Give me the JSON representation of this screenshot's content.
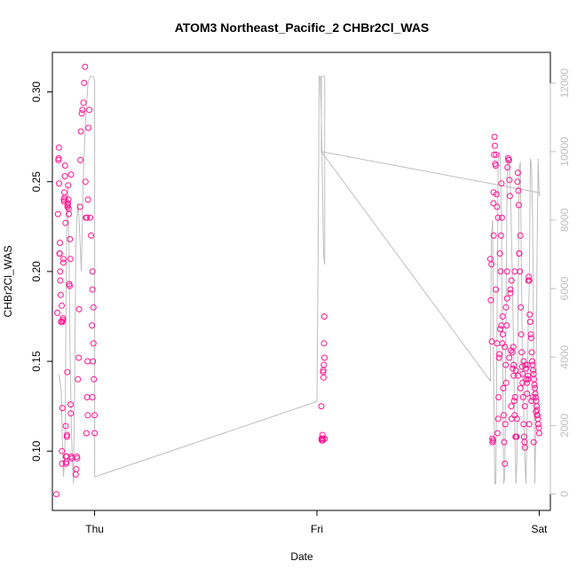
{
  "chart_data": {
    "type": "scatter",
    "title": "ATOM3 Northeast_Pacific_2 CHBr2Cl_WAS",
    "xlabel": "Date",
    "ylabel": "CHBr2Cl_WAS",
    "x_ticks": [
      "Thu",
      "Fri",
      "Sat"
    ],
    "x_tick_values": [
      0,
      1,
      2
    ],
    "xlim": [
      -0.19,
      2.05
    ],
    "ylim": [
      0.067,
      0.322
    ],
    "y_ticks": [
      0.1,
      0.15,
      0.2,
      0.25,
      0.3
    ],
    "y_right_lim": [
      -480,
      12900
    ],
    "y_right_ticks": [
      0,
      2000,
      4000,
      6000,
      8000,
      10000,
      12000
    ],
    "grid": false,
    "colors": {
      "points": "#ff1493",
      "line": "#bebebe",
      "axis": "#000000",
      "right_axis": "#bebebe"
    },
    "series": [
      {
        "type": "scatter",
        "axis": "left",
        "x": [
          -0.172,
          -0.168,
          -0.165,
          -0.163,
          -0.162,
          -0.161,
          -0.16,
          -0.158,
          -0.157,
          -0.156,
          -0.155,
          -0.154,
          -0.153,
          -0.151,
          -0.15,
          -0.148,
          -0.147,
          -0.146,
          -0.145,
          -0.144,
          -0.143,
          -0.142,
          -0.141,
          -0.14,
          -0.138,
          -0.137,
          -0.136,
          -0.135,
          -0.134,
          -0.133,
          -0.131,
          -0.13,
          -0.129,
          -0.128,
          -0.127,
          -0.126,
          -0.125,
          -0.124,
          -0.123,
          -0.122,
          -0.121,
          -0.12,
          -0.119,
          -0.118,
          -0.117,
          -0.116,
          -0.114,
          -0.112,
          -0.111,
          -0.109,
          -0.108,
          -0.107,
          -0.106,
          -0.105,
          -0.103,
          -0.102,
          -0.085,
          -0.082,
          -0.08,
          -0.078,
          -0.075,
          -0.072,
          -0.07,
          -0.066,
          -0.064,
          -0.062,
          -0.058,
          -0.055,
          -0.05,
          -0.047,
          -0.043,
          -0.041,
          -0.039,
          -0.037,
          -0.034,
          -0.031,
          -0.028,
          -0.024,
          -0.02,
          -0.016,
          -0.012,
          -0.008,
          -0.005,
          -0.003,
          0.0,
          0.0,
          -0.01,
          -0.01,
          -0.01,
          -0.005,
          -0.03,
          -0.032,
          -0.035
        ],
        "y": [
          0.076,
          0.177,
          0.232,
          0.262,
          0.263,
          0.269,
          0.249,
          0.21,
          0.21,
          0.216,
          0.2,
          0.195,
          0.187,
          0.172,
          0.172,
          0.181,
          0.1,
          0.093,
          0.124,
          0.172,
          0.173,
          0.174,
          0.205,
          0.207,
          0.24,
          0.239,
          0.244,
          0.241,
          0.253,
          0.259,
          0.227,
          0.114,
          0.097,
          0.093,
          0.094,
          0.097,
          0.108,
          0.109,
          0.144,
          0.236,
          0.237,
          0.238,
          0.248,
          0.24,
          0.235,
          0.232,
          0.193,
          0.192,
          0.218,
          0.207,
          0.126,
          0.121,
          0.254,
          0.097,
          0.096,
          0.096,
          0.087,
          0.09,
          0.097,
          0.096,
          0.14,
          0.152,
          0.179,
          0.236,
          0.262,
          0.278,
          0.288,
          0.29,
          0.294,
          0.305,
          0.314,
          0.25,
          0.23,
          0.11,
          0.13,
          0.12,
          0.28,
          0.29,
          0.23,
          0.22,
          0.17,
          0.15,
          0.16,
          0.14,
          0.12,
          0.11,
          0.13,
          0.2,
          0.19,
          0.18,
          0.24,
          0.15,
          0.23
        ]
      },
      {
        "type": "scatter",
        "axis": "left",
        "x": [
          1.02,
          1.021,
          1.022,
          1.024,
          1.025,
          1.026,
          1.027,
          1.028,
          1.029,
          1.03,
          1.031,
          1.032,
          1.033,
          1.034,
          1.035
        ],
        "y": [
          0.125,
          0.107,
          0.106,
          0.107,
          0.109,
          0.106,
          0.107,
          0.144,
          0.145,
          0.141,
          0.148,
          0.16,
          0.175,
          0.152,
          0.107
        ]
      },
      {
        "type": "scatter",
        "axis": "left",
        "x": [
          1.78,
          1.782,
          1.785,
          1.787,
          1.789,
          1.79,
          1.792,
          1.794,
          1.795,
          1.797,
          1.799,
          1.8,
          1.802,
          1.804,
          1.806,
          1.808,
          1.81,
          1.812,
          1.815,
          1.817,
          1.819,
          1.821,
          1.823,
          1.826,
          1.828,
          1.83,
          1.832,
          1.834,
          1.836,
          1.838,
          1.84,
          1.842,
          1.845,
          1.847,
          1.849,
          1.851,
          1.853,
          1.855,
          1.857,
          1.86,
          1.862,
          1.864,
          1.866,
          1.868,
          1.87,
          1.872,
          1.874,
          1.876,
          1.879,
          1.881,
          1.883,
          1.885,
          1.887,
          1.889,
          1.891,
          1.893,
          1.896,
          1.898,
          1.9,
          1.902,
          1.904,
          1.906,
          1.908,
          1.91,
          1.913,
          1.915,
          1.917,
          1.919,
          1.921,
          1.923,
          1.925,
          1.927,
          1.93,
          1.932,
          1.934,
          1.936,
          1.938,
          1.94,
          1.942,
          1.944,
          1.947,
          1.949,
          1.951,
          1.953,
          1.955,
          1.957,
          1.959,
          1.962,
          1.964,
          1.966,
          1.968,
          1.97,
          1.972,
          1.974,
          1.976,
          1.978,
          1.98,
          1.982,
          1.984,
          1.986,
          1.988,
          1.99,
          1.992,
          1.994,
          1.996,
          1.998,
          2.0,
          1.81,
          1.83,
          1.85,
          1.87,
          1.89,
          1.91,
          1.93,
          1.95,
          1.97,
          1.99,
          1.795,
          1.815,
          1.835,
          1.855,
          1.875,
          1.895,
          1.915,
          1.935,
          1.955,
          1.975,
          1.805,
          1.825,
          1.845,
          1.865,
          1.885,
          1.905,
          1.925,
          1.945,
          1.965,
          1.985
        ],
        "y": [
          0.207,
          0.184,
          0.204,
          0.161,
          0.107,
          0.105,
          0.106,
          0.238,
          0.244,
          0.265,
          0.275,
          0.27,
          0.26,
          0.259,
          0.265,
          0.243,
          0.236,
          0.11,
          0.118,
          0.13,
          0.152,
          0.154,
          0.21,
          0.2,
          0.22,
          0.249,
          0.23,
          0.16,
          0.165,
          0.135,
          0.12,
          0.105,
          0.093,
          0.115,
          0.148,
          0.138,
          0.17,
          0.2,
          0.258,
          0.263,
          0.262,
          0.262,
          0.251,
          0.242,
          0.188,
          0.156,
          0.125,
          0.118,
          0.155,
          0.146,
          0.158,
          0.142,
          0.128,
          0.12,
          0.13,
          0.108,
          0.108,
          0.108,
          0.118,
          0.25,
          0.255,
          0.245,
          0.237,
          0.21,
          0.2,
          0.22,
          0.18,
          0.165,
          0.155,
          0.147,
          0.143,
          0.13,
          0.115,
          0.108,
          0.105,
          0.102,
          0.148,
          0.146,
          0.14,
          0.138,
          0.148,
          0.142,
          0.195,
          0.197,
          0.195,
          0.176,
          0.172,
          0.165,
          0.163,
          0.155,
          0.15,
          0.148,
          0.145,
          0.143,
          0.14,
          0.137,
          0.135,
          0.132,
          0.13,
          0.128,
          0.125,
          0.123,
          0.12,
          0.118,
          0.115,
          0.113,
          0.11,
          0.16,
          0.17,
          0.18,
          0.19,
          0.2,
          0.21,
          0.15,
          0.14,
          0.13,
          0.12,
          0.22,
          0.23,
          0.175,
          0.185,
          0.195,
          0.145,
          0.135,
          0.125,
          0.115,
          0.105,
          0.19,
          0.168,
          0.158,
          0.152,
          0.148,
          0.142,
          0.138,
          0.132,
          0.128,
          0.122
        ]
      },
      {
        "type": "line",
        "axis": "right",
        "x": [
          -0.16,
          -0.15,
          -0.145,
          -0.14,
          -0.135,
          -0.132,
          -0.128,
          -0.125,
          -0.12,
          -0.115,
          -0.11,
          -0.105,
          -0.1,
          -0.095,
          -0.09,
          -0.085,
          -0.08,
          -0.075,
          -0.07,
          -0.06,
          -0.05,
          -0.04,
          -0.03,
          -0.02,
          -0.01,
          0.0,
          0.0,
          1.0,
          1.005,
          1.01,
          1.015,
          1.02,
          1.025,
          1.03,
          1.035,
          1.035,
          1.02,
          1.02,
          1.78,
          1.785,
          1.79,
          1.795,
          1.8,
          1.805,
          1.81,
          1.815,
          1.82,
          1.825,
          1.83,
          1.835,
          1.84,
          1.845,
          1.85,
          1.855,
          1.86,
          1.865,
          1.87,
          1.875,
          1.88,
          1.885,
          1.89,
          1.895,
          1.9,
          1.905,
          1.91,
          1.915,
          1.92,
          1.925,
          1.93,
          1.935,
          1.94,
          1.945,
          1.95,
          1.955,
          1.96,
          1.965,
          1.97,
          1.975,
          1.98,
          1.985,
          1.99,
          1.995,
          2.0,
          2.0,
          1.02
        ],
        "y": [
          3500,
          3000,
          1500,
          500,
          1000,
          2000,
          6000,
          8000,
          9000,
          7000,
          4000,
          2000,
          1000,
          300,
          3000,
          7000,
          8000,
          8500,
          8000,
          6500,
          9500,
          11000,
          12000,
          12200,
          12200,
          12100,
          500,
          2700,
          6700,
          12200,
          12200,
          11000,
          9000,
          7000,
          6700,
          12200,
          12200,
          10000,
          3300,
          7500,
          8000,
          3500,
          300,
          300,
          5000,
          9500,
          10000,
          9800,
          8000,
          4000,
          300,
          500,
          4500,
          9200,
          9800,
          9700,
          9000,
          7500,
          6000,
          4000,
          2000,
          300,
          1000,
          6000,
          9500,
          9700,
          6500,
          3500,
          2500,
          1000,
          300,
          2000,
          5000,
          6000,
          9800,
          9600,
          8000,
          4000,
          300,
          2000,
          7000,
          9800,
          8700,
          8800,
          10000
        ]
      }
    ]
  }
}
